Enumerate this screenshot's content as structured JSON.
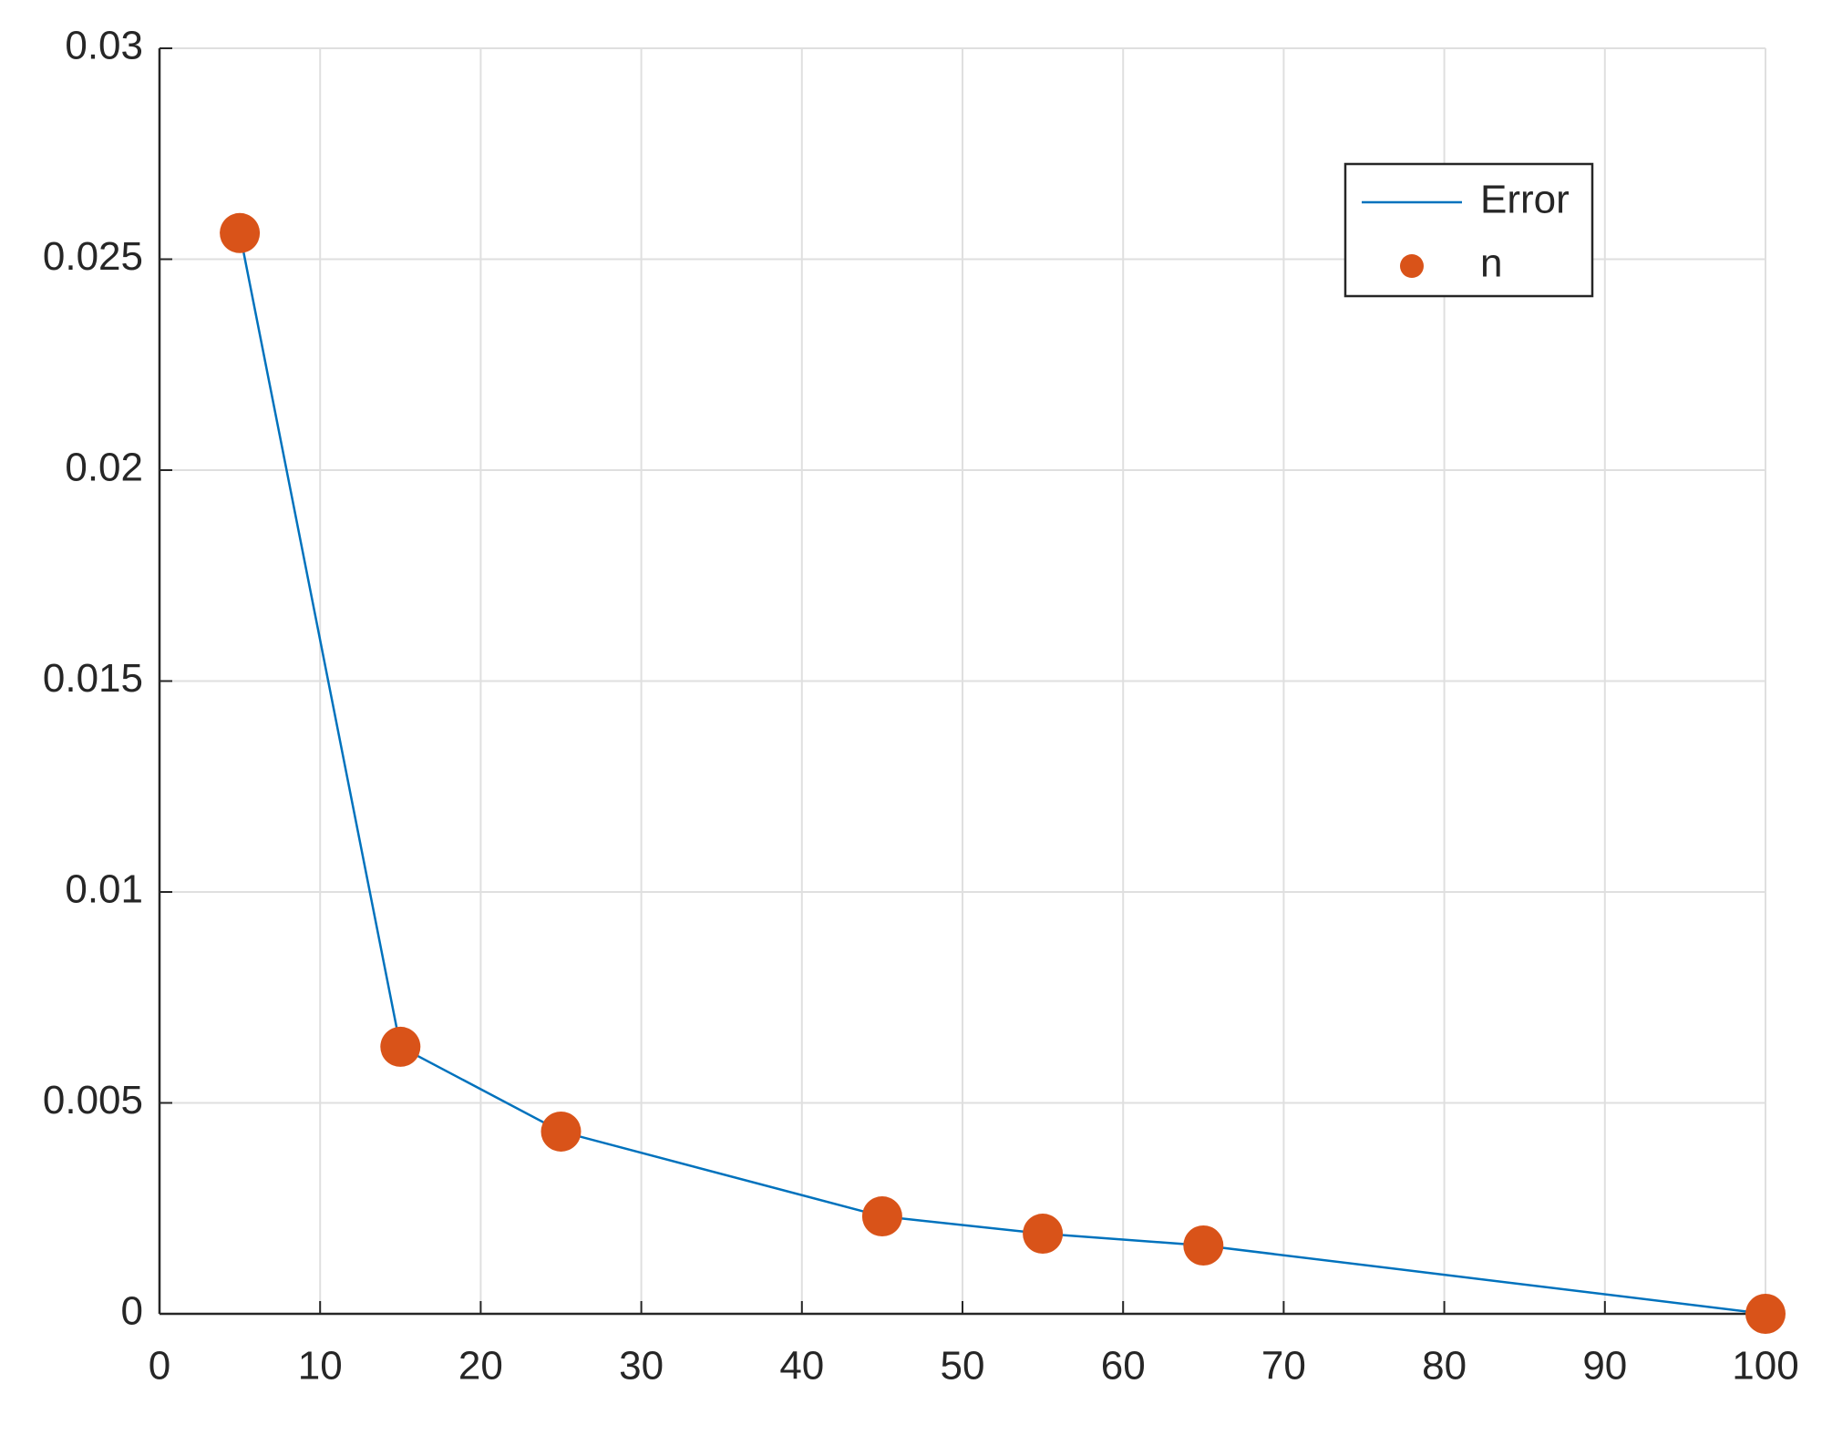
{
  "chart_data": {
    "type": "line",
    "x": [
      5,
      15,
      25,
      45,
      55,
      65,
      100
    ],
    "series": [
      {
        "name": "Error",
        "kind": "line",
        "color": "#0072bd",
        "values": [
          0.02562,
          0.00633,
          0.00432,
          0.00231,
          0.0019,
          0.00162,
          0
        ]
      },
      {
        "name": "n",
        "kind": "scatter",
        "color": "#d95319",
        "values": [
          0.02562,
          0.00633,
          0.00432,
          0.00231,
          0.0019,
          0.00162,
          0
        ]
      }
    ],
    "xlim": [
      0,
      100
    ],
    "xticks": [
      0,
      10,
      20,
      30,
      40,
      50,
      60,
      70,
      80,
      90,
      100
    ],
    "ylim": [
      0,
      0.03
    ],
    "yticks": [
      0,
      0.005,
      0.01,
      0.015,
      0.02,
      0.025,
      0.03
    ],
    "grid": true,
    "legend": "northeast"
  }
}
